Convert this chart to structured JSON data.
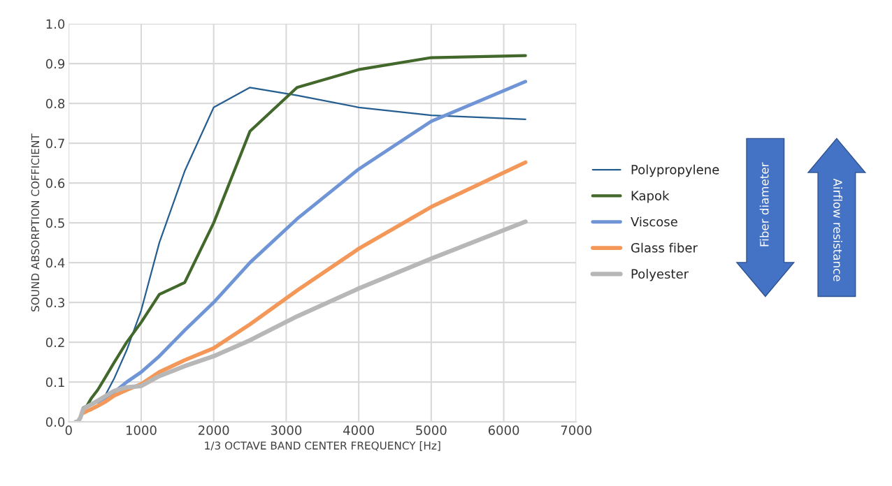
{
  "chart_data": {
    "type": "line",
    "xlabel": "1/3 OCTAVE BAND CENTER FREQUENCY [Hz]",
    "ylabel": "SOUND ABSORPTION COFFICIENT",
    "x": [
      100,
      125,
      160,
      200,
      250,
      315,
      400,
      500,
      630,
      800,
      1000,
      1250,
      1600,
      2000,
      2500,
      3150,
      4000,
      5000,
      6300
    ],
    "series": [
      {
        "name": "Polypropylene",
        "color": "#255e91",
        "values": [
          null,
          null,
          null,
          null,
          null,
          null,
          0.05,
          0.065,
          0.11,
          0.18,
          0.28,
          0.45,
          0.63,
          0.79,
          0.84,
          0.82,
          0.79,
          0.77,
          0.76
        ]
      },
      {
        "name": "Kapok",
        "color": "#43682b",
        "values": [
          null,
          null,
          null,
          0.035,
          0.04,
          0.06,
          0.08,
          0.11,
          0.15,
          0.2,
          0.25,
          0.32,
          0.35,
          0.5,
          0.73,
          0.84,
          0.885,
          0.915,
          0.92
        ]
      },
      {
        "name": "Viscose",
        "color": "#6f95d6",
        "values": [
          null,
          null,
          null,
          null,
          null,
          null,
          0.05,
          0.06,
          0.075,
          0.1,
          0.125,
          0.165,
          0.23,
          0.3,
          0.4,
          0.51,
          0.635,
          0.755,
          0.855
        ]
      },
      {
        "name": "Glass fiber",
        "color": "#f4985a",
        "values": [
          null,
          null,
          null,
          0.022,
          0.027,
          0.032,
          0.04,
          0.05,
          0.066,
          0.08,
          0.095,
          0.125,
          0.155,
          0.185,
          0.245,
          0.33,
          0.435,
          0.54,
          0.652
        ]
      },
      {
        "name": "Polyester",
        "color": "#b7b7b7",
        "values": [
          0,
          0,
          0.01,
          0.032,
          0.038,
          0.044,
          0.053,
          0.064,
          0.078,
          0.087,
          0.09,
          0.115,
          0.14,
          0.165,
          0.205,
          0.265,
          0.335,
          0.41,
          0.503
        ]
      }
    ],
    "xlim": [
      0,
      7000
    ],
    "xticks": [
      0,
      1000,
      2000,
      3000,
      4000,
      5000,
      6000,
      7000
    ],
    "ylim": [
      0,
      1
    ],
    "yticks": [
      {
        "value": 0,
        "label": "0.0"
      },
      0.1,
      0.2,
      0.3,
      0.4,
      0.5,
      0.6,
      0.7,
      0.8,
      0.9,
      {
        "value": 1,
        "label": "1.0"
      }
    ],
    "grid": true,
    "legend": "right",
    "marker": "none",
    "line_style": "solid",
    "annotations": [
      "Fiber diameter",
      "Airflow resistance"
    ]
  }
}
